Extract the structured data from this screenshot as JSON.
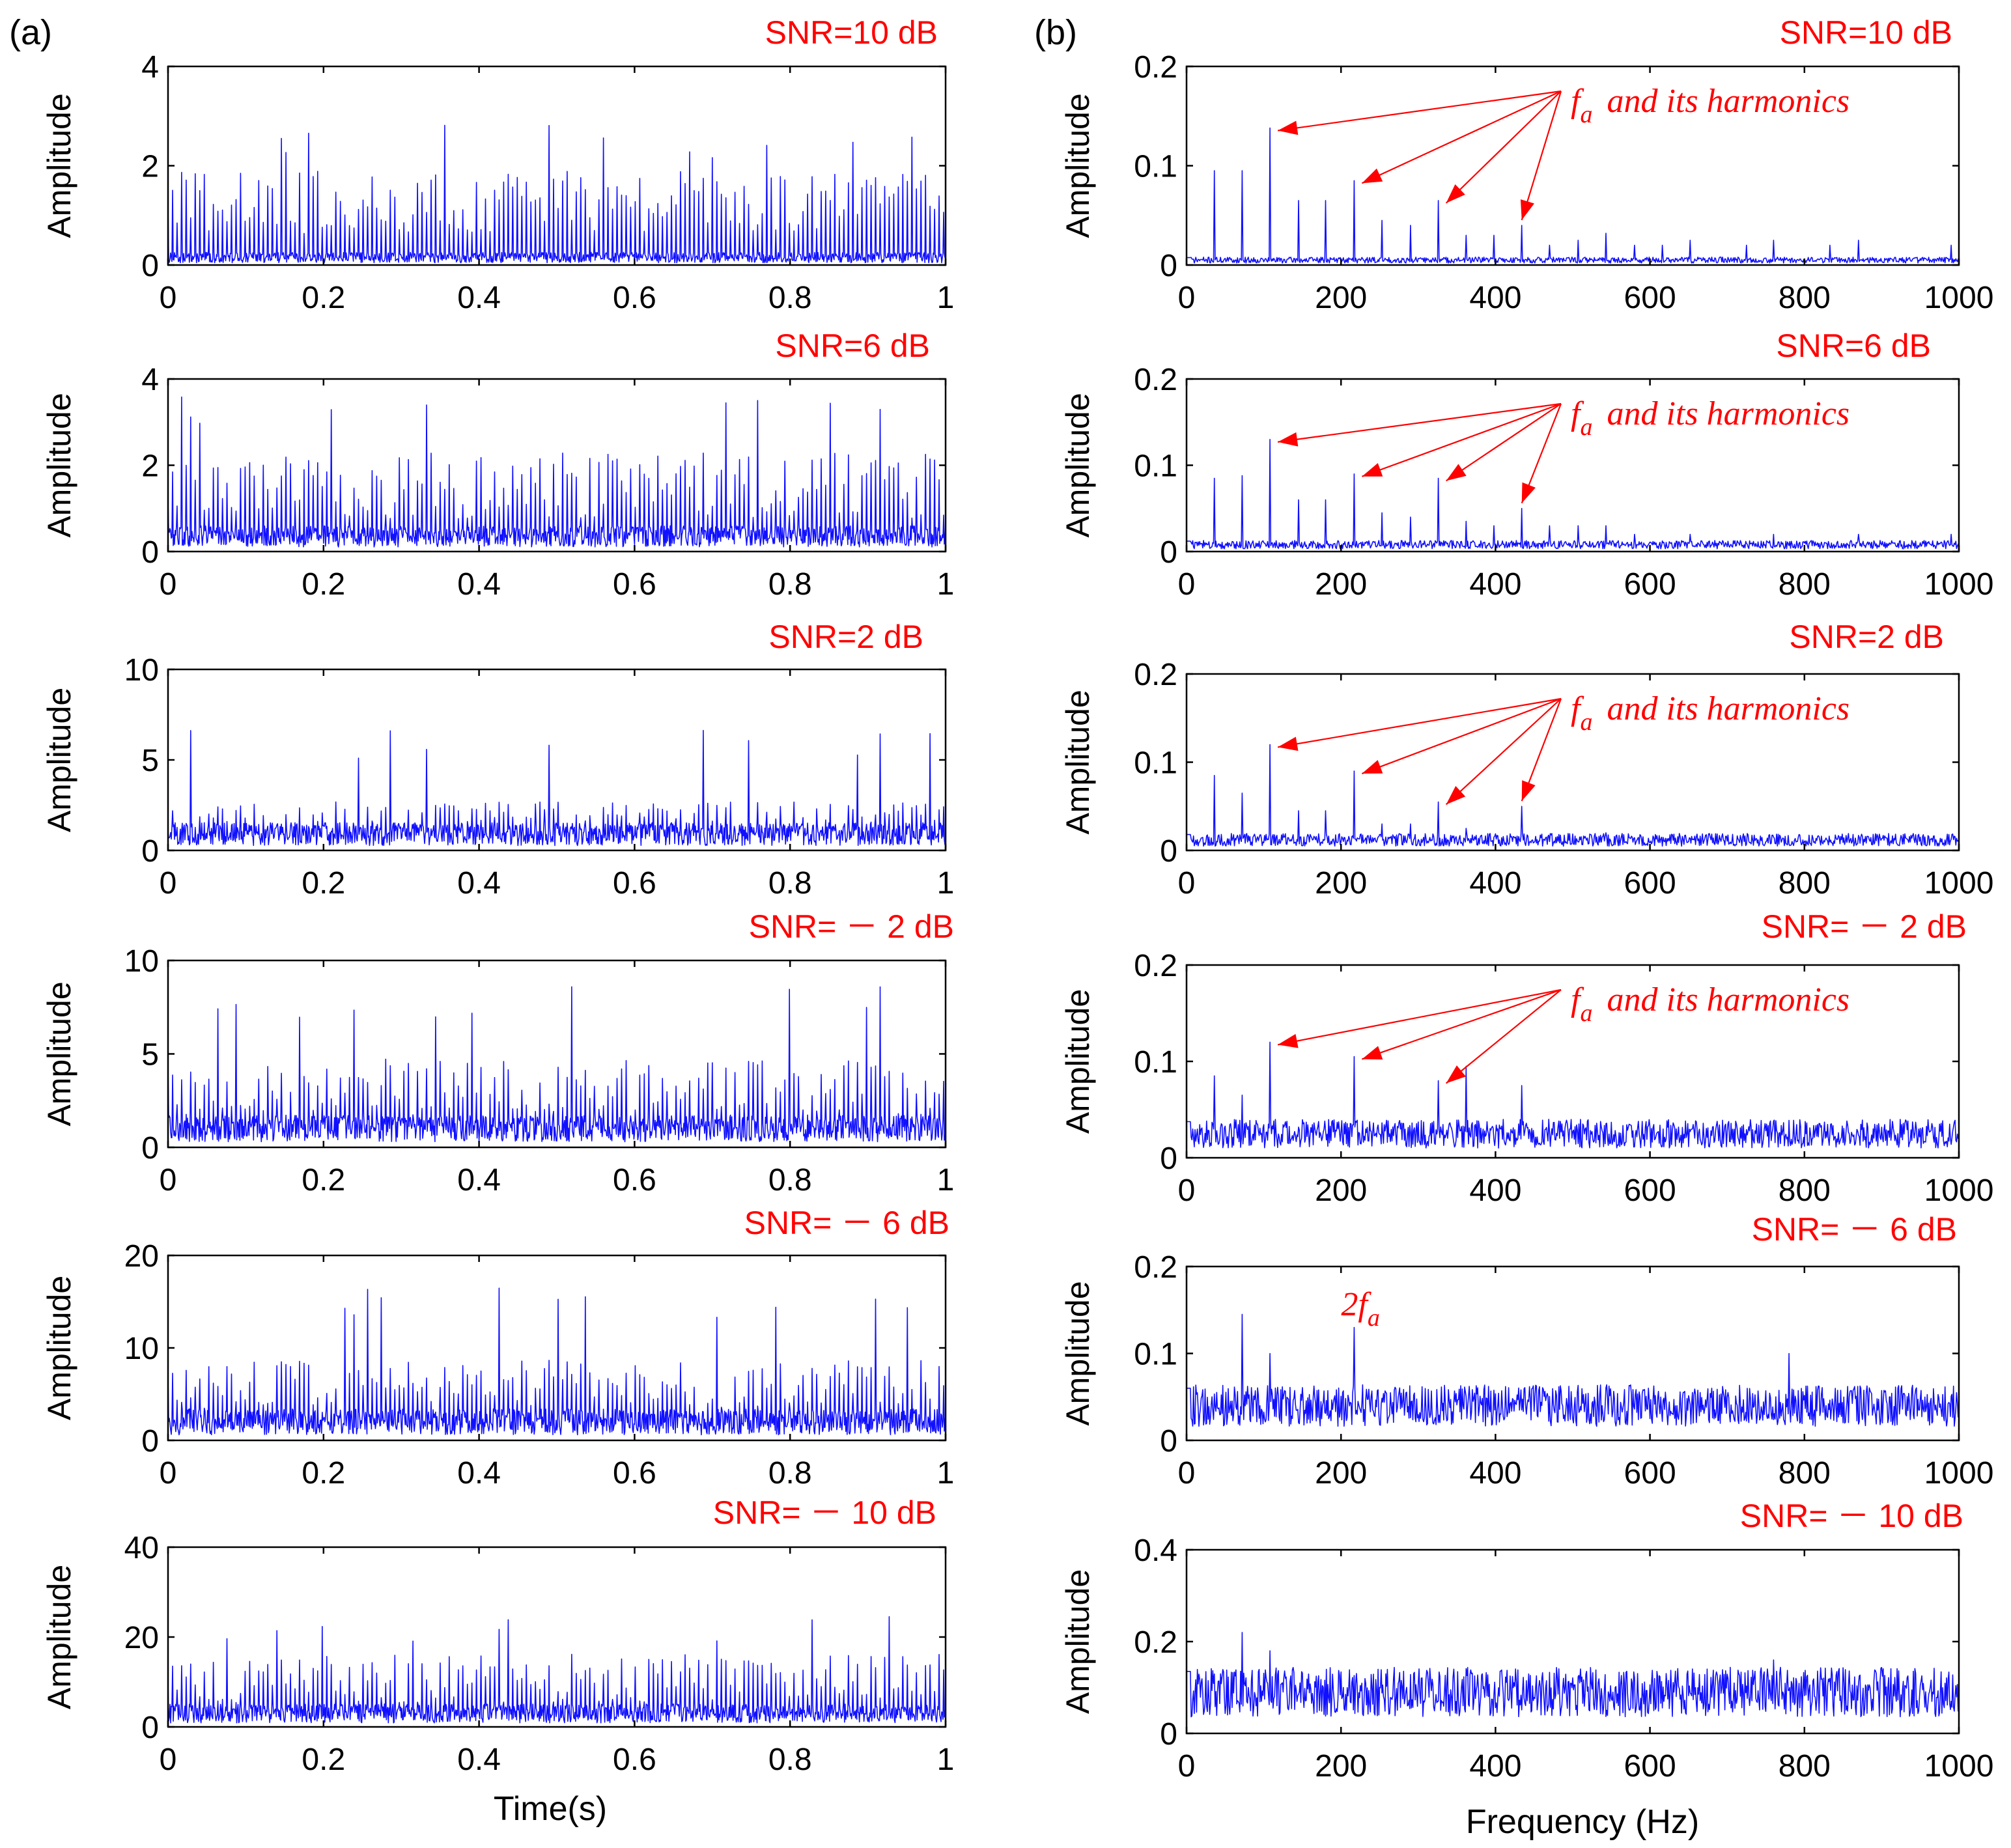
{
  "panel_labels": {
    "a": "(a)",
    "b": "(b)"
  },
  "x_axis_labels": {
    "time": "Time(s)",
    "frequency": "Frequency (Hz)"
  },
  "y_axis_label": "Amplitude",
  "colors": {
    "signal": "#1010ff",
    "annotation": "#ff0000",
    "axes": "#000000"
  },
  "annotation_text": {
    "fa": "f",
    "fa_sub": "a",
    "harmonics": "and its harmonics",
    "two_fa_coef": "2f",
    "two_fa_sub": "a"
  },
  "chart_data": [
    {
      "id": "a1",
      "type": "line",
      "domain": "time",
      "title": "SNR=10 dB",
      "xlabel": "",
      "ylabel": "Amplitude",
      "xlim": [
        0,
        1
      ],
      "ylim": [
        0,
        4
      ],
      "xticks": [
        "0",
        "0.2",
        "0.4",
        "0.6",
        "0.8",
        "1"
      ],
      "yticks": [
        "0",
        "2",
        "4"
      ],
      "noise_level": 0.15,
      "typical_peak": 1.4,
      "max_peak": 2.85,
      "impulse_count": 160
    },
    {
      "id": "a2",
      "type": "line",
      "domain": "time",
      "title": "SNR=6 dB",
      "xlabel": "",
      "ylabel": "Amplitude",
      "xlim": [
        0,
        1
      ],
      "ylim": [
        0,
        4
      ],
      "xticks": [
        "0",
        "0.2",
        "0.4",
        "0.6",
        "0.8",
        "1"
      ],
      "yticks": [
        "0",
        "2",
        "4"
      ],
      "noise_level": 0.35,
      "typical_peak": 1.7,
      "max_peak": 3.6,
      "impulse_count": 160
    },
    {
      "id": "a3",
      "type": "line",
      "domain": "time",
      "title": "SNR=2 dB",
      "xlabel": "",
      "ylabel": "Amplitude",
      "xlim": [
        0,
        1
      ],
      "ylim": [
        0,
        10
      ],
      "xticks": [
        "0",
        "0.2",
        "0.4",
        "0.6",
        "0.8",
        "1"
      ],
      "yticks": [
        "0",
        "5",
        "10"
      ],
      "noise_level": 0.9,
      "typical_peak": 2.0,
      "max_peak": 6.7,
      "impulse_count": 160
    },
    {
      "id": "a4",
      "type": "line",
      "domain": "time",
      "title": "SNR= － 2 dB",
      "xlabel": "",
      "ylabel": "Amplitude",
      "xlim": [
        0,
        1
      ],
      "ylim": [
        0,
        10
      ],
      "xticks": [
        "0",
        "0.2",
        "0.4",
        "0.6",
        "0.8",
        "1"
      ],
      "yticks": [
        "0",
        "5",
        "10"
      ],
      "noise_level": 1.0,
      "typical_peak": 3.5,
      "max_peak": 8.6,
      "impulse_count": 160
    },
    {
      "id": "a5",
      "type": "line",
      "domain": "time",
      "title": "SNR= － 6 dB",
      "xlabel": "",
      "ylabel": "Amplitude",
      "xlim": [
        0,
        1
      ],
      "ylim": [
        0,
        20
      ],
      "xticks": [
        "0",
        "0.2",
        "0.4",
        "0.6",
        "0.8",
        "1"
      ],
      "yticks": [
        "0",
        "10",
        "20"
      ],
      "noise_level": 2.0,
      "typical_peak": 6.5,
      "max_peak": 17,
      "impulse_count": 160
    },
    {
      "id": "a6",
      "type": "line",
      "domain": "time",
      "title": "SNR= － 10 dB",
      "xlabel": "Time(s)",
      "ylabel": "Amplitude",
      "xlim": [
        0,
        1
      ],
      "ylim": [
        0,
        40
      ],
      "xticks": [
        "0",
        "0.2",
        "0.4",
        "0.6",
        "0.8",
        "1"
      ],
      "yticks": [
        "0",
        "20",
        "40"
      ],
      "noise_level": 3.0,
      "typical_peak": 12,
      "max_peak": 25,
      "impulse_count": 160
    },
    {
      "id": "b1",
      "type": "line",
      "domain": "frequency",
      "title": "SNR=10 dB",
      "xlabel": "",
      "ylabel": "Amplitude",
      "xlim": [
        0,
        1000
      ],
      "ylim": [
        0,
        0.2
      ],
      "xticks": [
        "0",
        "200",
        "400",
        "600",
        "800",
        "1000"
      ],
      "yticks": [
        "0",
        "0.1",
        "0.2"
      ],
      "noise_level": 0.005,
      "peaks": [
        {
          "f": 36,
          "a": 0.095
        },
        {
          "f": 72,
          "a": 0.095
        },
        {
          "f": 108,
          "a": 0.138
        },
        {
          "f": 145,
          "a": 0.065
        },
        {
          "f": 180,
          "a": 0.065
        },
        {
          "f": 217,
          "a": 0.085
        },
        {
          "f": 253,
          "a": 0.045
        },
        {
          "f": 290,
          "a": 0.04
        },
        {
          "f": 326,
          "a": 0.065
        },
        {
          "f": 362,
          "a": 0.03
        },
        {
          "f": 398,
          "a": 0.03
        },
        {
          "f": 434,
          "a": 0.04
        },
        {
          "f": 470,
          "a": 0.02
        },
        {
          "f": 507,
          "a": 0.025
        },
        {
          "f": 543,
          "a": 0.032
        },
        {
          "f": 580,
          "a": 0.02
        },
        {
          "f": 616,
          "a": 0.02
        },
        {
          "f": 652,
          "a": 0.025
        },
        {
          "f": 725,
          "a": 0.02
        },
        {
          "f": 760,
          "a": 0.025
        },
        {
          "f": 833,
          "a": 0.02
        },
        {
          "f": 870,
          "a": 0.025
        },
        {
          "f": 990,
          "a": 0.02
        }
      ],
      "annotation": "fa and its harmonics"
    },
    {
      "id": "b2",
      "type": "line",
      "domain": "frequency",
      "title": "SNR=6 dB",
      "xlabel": "",
      "ylabel": "Amplitude",
      "xlim": [
        0,
        1000
      ],
      "ylim": [
        0,
        0.2
      ],
      "xticks": [
        "0",
        "200",
        "400",
        "600",
        "800",
        "1000"
      ],
      "yticks": [
        "0",
        "0.1",
        "0.2"
      ],
      "noise_level": 0.008,
      "peaks": [
        {
          "f": 36,
          "a": 0.085
        },
        {
          "f": 72,
          "a": 0.088
        },
        {
          "f": 108,
          "a": 0.13
        },
        {
          "f": 145,
          "a": 0.06
        },
        {
          "f": 180,
          "a": 0.06
        },
        {
          "f": 217,
          "a": 0.09
        },
        {
          "f": 253,
          "a": 0.045
        },
        {
          "f": 290,
          "a": 0.04
        },
        {
          "f": 326,
          "a": 0.085
        },
        {
          "f": 362,
          "a": 0.035
        },
        {
          "f": 398,
          "a": 0.03
        },
        {
          "f": 434,
          "a": 0.05
        },
        {
          "f": 470,
          "a": 0.03
        },
        {
          "f": 507,
          "a": 0.03
        },
        {
          "f": 543,
          "a": 0.03
        },
        {
          "f": 580,
          "a": 0.02
        },
        {
          "f": 652,
          "a": 0.02
        },
        {
          "f": 760,
          "a": 0.02
        },
        {
          "f": 870,
          "a": 0.02
        },
        {
          "f": 990,
          "a": 0.02
        }
      ],
      "annotation": "fa and its harmonics"
    },
    {
      "id": "b3",
      "type": "line",
      "domain": "frequency",
      "title": "SNR=2 dB",
      "xlabel": "",
      "ylabel": "Amplitude",
      "xlim": [
        0,
        1000
      ],
      "ylim": [
        0,
        0.2
      ],
      "xticks": [
        "0",
        "200",
        "400",
        "600",
        "800",
        "1000"
      ],
      "yticks": [
        "0",
        "0.1",
        "0.2"
      ],
      "noise_level": 0.012,
      "peaks": [
        {
          "f": 36,
          "a": 0.085
        },
        {
          "f": 72,
          "a": 0.065
        },
        {
          "f": 108,
          "a": 0.12
        },
        {
          "f": 145,
          "a": 0.045
        },
        {
          "f": 180,
          "a": 0.045
        },
        {
          "f": 217,
          "a": 0.09
        },
        {
          "f": 253,
          "a": 0.03
        },
        {
          "f": 290,
          "a": 0.03
        },
        {
          "f": 326,
          "a": 0.055
        },
        {
          "f": 362,
          "a": 0.025
        },
        {
          "f": 434,
          "a": 0.05
        },
        {
          "f": 543,
          "a": 0.02
        }
      ],
      "annotation": "fa and its harmonics"
    },
    {
      "id": "b4",
      "type": "line",
      "domain": "frequency",
      "title": "SNR= － 2 dB",
      "xlabel": "",
      "ylabel": "Amplitude",
      "xlim": [
        0,
        1000
      ],
      "ylim": [
        0,
        0.2
      ],
      "xticks": [
        "0",
        "200",
        "400",
        "600",
        "800",
        "1000"
      ],
      "yticks": [
        "0",
        "0.1",
        "0.2"
      ],
      "noise_level": 0.025,
      "peaks": [
        {
          "f": 36,
          "a": 0.085
        },
        {
          "f": 72,
          "a": 0.065
        },
        {
          "f": 108,
          "a": 0.12
        },
        {
          "f": 217,
          "a": 0.105
        },
        {
          "f": 326,
          "a": 0.08
        },
        {
          "f": 362,
          "a": 0.095
        },
        {
          "f": 434,
          "a": 0.075
        }
      ],
      "annotation": "fa and its harmonics"
    },
    {
      "id": "b5",
      "type": "line",
      "domain": "frequency",
      "title": "SNR= － 6 dB",
      "xlabel": "",
      "ylabel": "Amplitude",
      "xlim": [
        0,
        1000
      ],
      "ylim": [
        0,
        0.2
      ],
      "xticks": [
        "0",
        "200",
        "400",
        "600",
        "800",
        "1000"
      ],
      "yticks": [
        "0",
        "0.1",
        "0.2"
      ],
      "noise_level": 0.04,
      "peaks": [
        {
          "f": 72,
          "a": 0.145
        },
        {
          "f": 217,
          "a": 0.13
        },
        {
          "f": 108,
          "a": 0.1
        },
        {
          "f": 780,
          "a": 0.1
        }
      ],
      "annotation": "2fa"
    },
    {
      "id": "b6",
      "type": "line",
      "domain": "frequency",
      "title": "SNR= － 10 dB",
      "xlabel": "Frequency (Hz)",
      "ylabel": "Amplitude",
      "xlim": [
        0,
        1000
      ],
      "ylim": [
        0,
        0.4
      ],
      "xticks": [
        "0",
        "200",
        "400",
        "600",
        "800",
        "1000"
      ],
      "yticks": [
        "0",
        "0.2",
        "0.4"
      ],
      "noise_level": 0.09,
      "peaks": [
        {
          "f": 72,
          "a": 0.22
        },
        {
          "f": 108,
          "a": 0.18
        },
        {
          "f": 760,
          "a": 0.16
        }
      ]
    }
  ]
}
